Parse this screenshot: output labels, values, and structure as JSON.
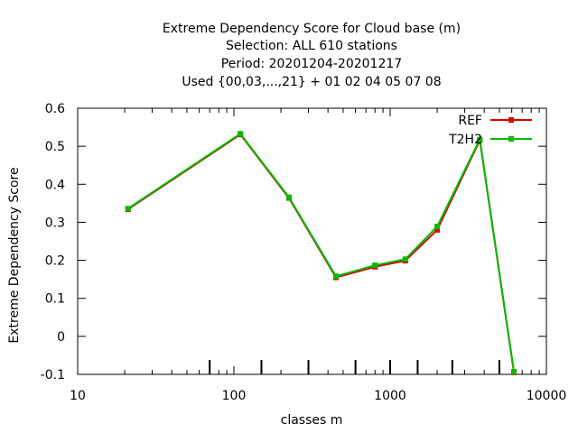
{
  "chart_data": {
    "type": "line",
    "title_lines": [
      "Extreme Dependency Score  for Cloud base (m)",
      "Selection: ALL    610 stations",
      "Period: 20201204-20201217",
      "Used {00,03,...,21} + 01 02 04 05 07 08"
    ],
    "xlabel": "classes m",
    "ylabel": "Extreme Dependency Score",
    "x_scale": "log",
    "xlim": [
      10,
      10000
    ],
    "ylim": [
      -0.1,
      0.6
    ],
    "x_ticks": [
      10,
      100,
      1000,
      10000
    ],
    "x_tick_labels": [
      "10",
      "100",
      "1000",
      "10000"
    ],
    "y_ticks": [
      -0.1,
      0,
      0.1,
      0.2,
      0.3,
      0.4,
      0.5,
      0.6
    ],
    "y_tick_labels": [
      "-0.1",
      "0",
      "0.1",
      "0.2",
      "0.3",
      "0.4",
      "0.5",
      "0.6"
    ],
    "class_marks": [
      70,
      150,
      300,
      600,
      1000,
      1500,
      2500,
      5000
    ],
    "legend_position": "top-right",
    "grid": false,
    "series": [
      {
        "name": "REF",
        "color": "#e00000",
        "x": [
          21,
          110,
          225,
          450,
          800,
          1250,
          2000,
          3750,
          6200
        ],
        "y": [
          0.334,
          0.531,
          0.364,
          0.155,
          0.183,
          0.199,
          0.28,
          0.516,
          -0.095
        ]
      },
      {
        "name": "T2H2",
        "color": "#00bb00",
        "x": [
          21,
          110,
          225,
          450,
          800,
          1250,
          2000,
          3750,
          6200
        ],
        "y": [
          0.336,
          0.533,
          0.366,
          0.158,
          0.187,
          0.203,
          0.289,
          0.518,
          -0.093
        ]
      }
    ]
  }
}
